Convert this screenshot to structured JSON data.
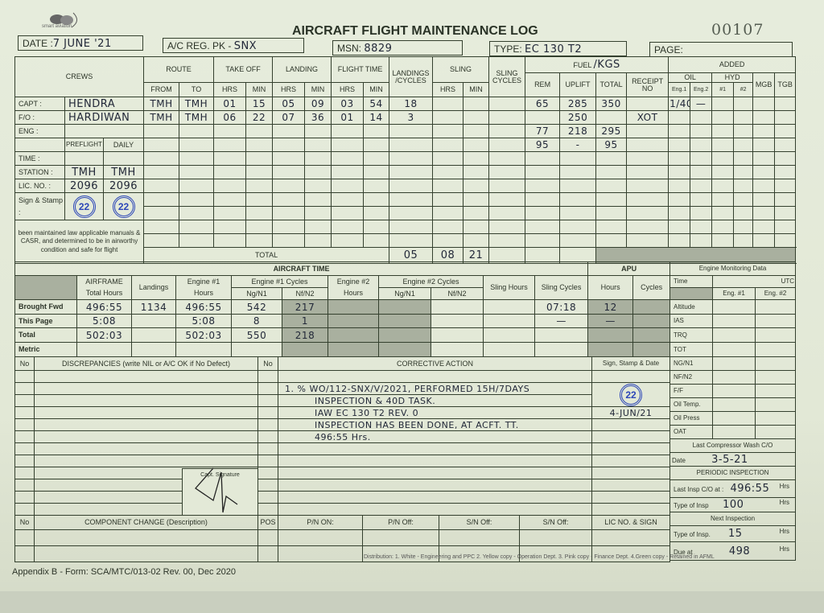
{
  "header": {
    "logo_text": "smart aviation",
    "title": "AIRCRAFT FLIGHT MAINTENANCE LOG",
    "serial": "00107",
    "date_label": "DATE :",
    "date_value": "7 JUNE '21",
    "reg_label": "A/C REG. PK -",
    "reg_value": "SNX",
    "msn_label": "MSN:",
    "msn_value": "8829",
    "type_label": "TYPE:",
    "type_value": "EC 130 T2",
    "page_label": "PAGE:",
    "page_value": ""
  },
  "flight_log": {
    "headers": {
      "crews": "CREWS",
      "route": "ROUTE",
      "takeoff": "TAKE OFF",
      "landing": "LANDING",
      "flight_time": "FLIGHT TIME",
      "landings_cycles": "LANDINGS /CYCLES",
      "sling": "SLING",
      "sling_cycles": "SLING CYCLES",
      "fuel": "FUEL",
      "fuel_unit": "/KGS",
      "added": "ADDED",
      "oil": "OIL",
      "hyd": "HYD",
      "sub": [
        "FROM",
        "TO",
        "HRS",
        "MIN",
        "HRS",
        "MIN",
        "HRS",
        "MIN"
      ],
      "sling_sub": [
        "HRS",
        "MIN"
      ],
      "fuel_sub": [
        "REM",
        "UPLIFT",
        "TOTAL",
        "RECEIPT NO"
      ],
      "added_sub": [
        "Eng.1",
        "Eng.2",
        "#1",
        "#2"
      ],
      "mgb": "MGB",
      "tgb": "TGB"
    },
    "crew": [
      {
        "label": "CAPT :",
        "name": "HENDRA"
      },
      {
        "label": "F/O :",
        "name": "HARDIWAN"
      },
      {
        "label": "ENG :",
        "name": ""
      }
    ],
    "check_headers": [
      "PREFLIGHT",
      "DAILY"
    ],
    "checks": [
      {
        "label": "TIME :",
        "preflight": "",
        "daily": ""
      },
      {
        "label": "STATION :",
        "preflight": "TMH",
        "daily": "TMH"
      },
      {
        "label": "LIC. NO. :",
        "preflight": "2096",
        "daily": "2096"
      }
    ],
    "sign_label": "Sign & Stamp :",
    "stamp_text": "22",
    "statement": "been maintained law applicable manuals & CASR, and determined to be in airworthy condition and safe for flight",
    "rows": [
      [
        "TMH",
        "TMH",
        "01",
        "15",
        "05",
        "09",
        "03",
        "54",
        "18",
        "",
        "",
        "",
        "65",
        "285",
        "350",
        "",
        "1/40",
        "—",
        "",
        "",
        "",
        ""
      ],
      [
        "TMH",
        "TMH",
        "06",
        "22",
        "07",
        "36",
        "01",
        "14",
        "3",
        "",
        "",
        "",
        "",
        "250",
        "",
        "XOT",
        "",
        "",
        "",
        "",
        "",
        ""
      ],
      [
        "",
        "",
        "",
        "",
        "",
        "",
        "",
        "",
        "",
        "",
        "",
        "",
        "77",
        "218",
        "295",
        "",
        "",
        "",
        "",
        "",
        "",
        ""
      ],
      [
        "",
        "",
        "",
        "",
        "",
        "",
        "",
        "",
        "",
        "",
        "",
        "",
        "95",
        "-",
        "95",
        "",
        "",
        "",
        "",
        "",
        "",
        ""
      ],
      [
        "",
        "",
        "",
        "",
        "",
        "",
        "",
        "",
        "",
        "",
        "",
        "",
        "",
        "",
        "",
        "",
        "",
        "",
        "",
        "",
        "",
        ""
      ],
      [
        "",
        "",
        "",
        "",
        "",
        "",
        "",
        "",
        "",
        "",
        "",
        "",
        "",
        "",
        "",
        "",
        "",
        "",
        "",
        "",
        "",
        ""
      ],
      [
        "",
        "",
        "",
        "",
        "",
        "",
        "",
        "",
        "",
        "",
        "",
        "",
        "",
        "",
        "",
        "",
        "",
        "",
        "",
        "",
        "",
        ""
      ],
      [
        "",
        "",
        "",
        "",
        "",
        "",
        "",
        "",
        "",
        "",
        "",
        "",
        "",
        "",
        "",
        "",
        "",
        "",
        "",
        "",
        "",
        ""
      ],
      [
        "",
        "",
        "",
        "",
        "",
        "",
        "",
        "",
        "",
        "",
        "",
        "",
        "",
        "",
        "",
        "",
        "",
        "",
        "",
        "",
        "",
        ""
      ],
      [
        "",
        "",
        "",
        "",
        "",
        "",
        "",
        "",
        "",
        "",
        "",
        "",
        "",
        "",
        "",
        "",
        "",
        "",
        "",
        "",
        "",
        ""
      ],
      [
        "",
        "",
        "",
        "",
        "",
        "",
        "",
        "",
        "",
        "",
        "",
        "",
        "",
        "",
        "",
        "",
        "",
        "",
        "",
        "",
        "",
        ""
      ]
    ],
    "total_label": "TOTAL",
    "total": {
      "ft_hrs": "05",
      "ft_min": "08",
      "landings": "21"
    }
  },
  "aircraft_time": {
    "title": "AIRCRAFT TIME",
    "apu": "APU",
    "headers": [
      "AIRFRAME Total Hours",
      "Landings",
      "Engine #1 Hours",
      "Engine #1 Cycles",
      "Engine #2 Hours",
      "Engine #2 Cycles",
      "Sling Hours",
      "Sling Cycles",
      "Hours",
      "Cycles"
    ],
    "cycle_sub": [
      "Ng/N1",
      "Nf/N2",
      "Ng/N1",
      "Nf/N2"
    ],
    "rows": [
      {
        "label": "Brought Fwd",
        "v": [
          "496:55",
          "1134",
          "496:55",
          "542",
          "217",
          "",
          "",
          "",
          "",
          "07:18",
          "12",
          "",
          ""
        ]
      },
      {
        "label": "This Page",
        "v": [
          "5:08",
          "",
          "5:08",
          "8",
          "1",
          "",
          "",
          "",
          "",
          "—",
          "—",
          "",
          ""
        ]
      },
      {
        "label": "Total",
        "v": [
          "502:03",
          "",
          "502:03",
          "550",
          "218",
          "",
          "",
          "",
          "",
          "",
          "",
          "",
          ""
        ]
      },
      {
        "label": "Metric",
        "v": [
          "",
          "",
          "",
          "",
          "",
          "",
          "",
          "",
          "",
          "",
          "",
          "",
          ""
        ]
      }
    ]
  },
  "engine_monitoring": {
    "title": "Engine Monitoring Data",
    "time": "Time",
    "utc": "UTC",
    "eng1": "Eng. #1",
    "eng2": "Eng. #2",
    "params": [
      "Altitude",
      "IAS",
      "TRQ",
      "TOT",
      "NG/N1",
      "NF/N2",
      "F/F",
      "Oil Temp.",
      "Oil Press",
      "OAT"
    ],
    "compressor_wash_label": "Last Compressor Wash C/O",
    "date_label": "Date",
    "date_value": "3-5-21",
    "periodic_label": "PERIODIC INSPECTION",
    "last_insp_label": "Last Insp C/O at :",
    "last_insp_value": "496:55",
    "type_insp_label": "Type of Insp",
    "type_insp_value": "100",
    "hrs": "Hrs",
    "next_label": "Next Inspection",
    "next_type_label": "Type of Insp.",
    "next_type_value": "15",
    "due_label": "Due at",
    "due_value": "498"
  },
  "discrepancies": {
    "no": "No",
    "title": "DISCREPANCIES (write NIL or A/C OK if No Defect)",
    "no2": "No",
    "corrective": "CORRECTIVE ACTION",
    "sign": "Sign, Stamp & Date",
    "capt_signature": "Capt. Signature",
    "corrective_lines": [
      "",
      "1. % WO/112-SNX/V/2021, PERFORMED 15H/7DAYS",
      "INSPECTION & 40D TASK.",
      "IAW EC 130 T2 REV. 0",
      "INSPECTION HAS BEEN DONE, AT ACFT. TT.",
      "496:55 Hrs.",
      "",
      "",
      "",
      "",
      "",
      ""
    ],
    "sign_date": "4-JUN/21",
    "stamp_text": "22"
  },
  "component_change": {
    "headers": [
      "No",
      "COMPONENT CHANGE (Description)",
      "POS",
      "P/N ON:",
      "P/N Off:",
      "S/N Off:",
      "S/N Off:",
      "LIC NO. & SIGN"
    ]
  },
  "footer": {
    "form": "Appendix B - Form:  SCA/MTC/013-02 Rev. 00, Dec 2020",
    "distribution": "Distribution: 1. White - Engineering and PPC  2. Yellow copy - Operation Dept.  3. Pink copy - Finance Dept.  4.Green copy - Retained in AFML"
  }
}
